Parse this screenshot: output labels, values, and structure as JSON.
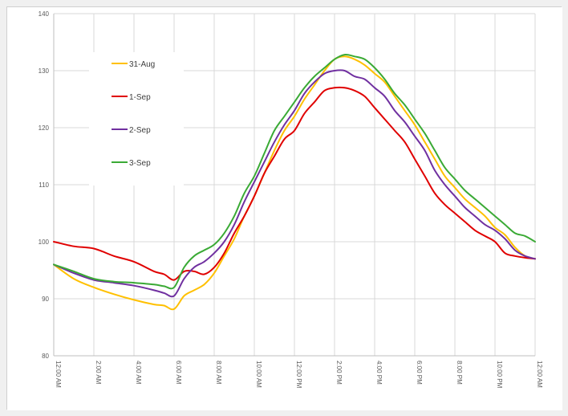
{
  "chart_data": {
    "type": "line",
    "title": "",
    "xlabel": "",
    "ylabel": "",
    "ylim": [
      80,
      140
    ],
    "yticks": [
      80,
      90,
      100,
      110,
      120,
      130,
      140
    ],
    "xlim": [
      0,
      24
    ],
    "x_tick_labels": [
      "12:00 AM",
      "2:00 AM",
      "4:00 AM",
      "6:00 AM",
      "8:00 AM",
      "10:00 AM",
      "12:00 PM",
      "2:00 PM",
      "4:00 PM",
      "6:00 PM",
      "8:00 PM",
      "10:00 PM",
      "12:00 AM"
    ],
    "x_hours": [
      0,
      1,
      2,
      3,
      4,
      5,
      5.5,
      6,
      6.5,
      7,
      7.5,
      8,
      8.5,
      9,
      9.5,
      10,
      10.5,
      11,
      11.5,
      12,
      12.5,
      13,
      13.5,
      14,
      14.5,
      15,
      15.5,
      16,
      16.5,
      17,
      17.5,
      18,
      18.5,
      19,
      19.5,
      20,
      20.5,
      21,
      21.5,
      22,
      22.5,
      23,
      23.5,
      24
    ],
    "grid": true,
    "legend": "top-left",
    "series": [
      {
        "name": "31-Aug",
        "color": "#ffc000",
        "values": [
          96,
          93.5,
          92,
          90.8,
          89.8,
          89,
          88.8,
          88.2,
          90.5,
          91.5,
          92.5,
          94.5,
          97.5,
          100.5,
          104.5,
          108,
          112,
          116,
          119.5,
          122,
          125,
          127.5,
          130,
          132,
          132.5,
          132,
          131,
          129.5,
          128,
          125.5,
          123,
          120.5,
          117.5,
          114.5,
          111.5,
          109.5,
          107.5,
          106,
          104.5,
          102.5,
          101.2,
          99,
          97.5,
          97
        ]
      },
      {
        "name": "1-Sep",
        "color": "#e00000",
        "values": [
          100,
          99.2,
          98.8,
          97.5,
          96.5,
          94.8,
          94.3,
          93.3,
          94.8,
          94.8,
          94.3,
          95.5,
          98,
          101.5,
          104.5,
          108,
          112,
          115,
          118,
          119.5,
          122.5,
          124.5,
          126.5,
          127,
          127,
          126.5,
          125.5,
          123.5,
          121.5,
          119.5,
          117.5,
          114.5,
          111.5,
          108.5,
          106.5,
          105,
          103.5,
          102,
          101,
          100,
          98,
          97.5,
          97.2,
          97
        ]
      },
      {
        "name": "2-Sep",
        "color": "#7030a0",
        "values": [
          96,
          94.5,
          93.3,
          92.8,
          92.3,
          91.5,
          91,
          90.5,
          93.5,
          95.5,
          96.5,
          98,
          100,
          103,
          107,
          110.5,
          114,
          117.5,
          120.5,
          123,
          126,
          128,
          129.5,
          130,
          130,
          129,
          128.5,
          127,
          125.5,
          123,
          121,
          118.5,
          116,
          112.5,
          110,
          108,
          106,
          104.5,
          103,
          102,
          100.5,
          98.5,
          97.5,
          97
        ]
      },
      {
        "name": "3-Sep",
        "color": "#3aaa35",
        "values": [
          96,
          94.8,
          93.5,
          93,
          92.8,
          92.5,
          92.2,
          92,
          95.5,
          97.5,
          98.5,
          99.5,
          101.5,
          104.5,
          108.5,
          111.5,
          115.5,
          119.5,
          122,
          124.5,
          127,
          129,
          130.5,
          132,
          132.8,
          132.5,
          132,
          130.5,
          128.5,
          126,
          124,
          121.5,
          119,
          116,
          113,
          111,
          109,
          107.5,
          106,
          104.5,
          103,
          101.5,
          101,
          100
        ]
      }
    ]
  }
}
